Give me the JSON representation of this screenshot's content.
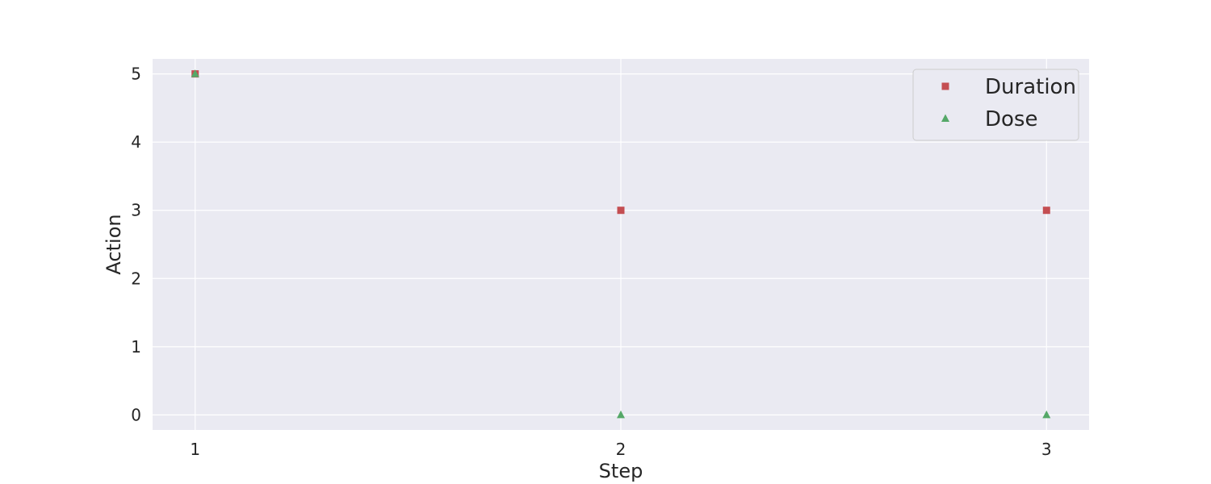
{
  "chart_data": {
    "type": "scatter",
    "title": "",
    "xlabel": "Step",
    "ylabel": "Action",
    "x": [
      1,
      2,
      3
    ],
    "xlim": [
      0.9,
      3.1
    ],
    "ylim": [
      -0.22,
      5.22
    ],
    "xticks": [
      "1",
      "2",
      "3"
    ],
    "yticks": [
      "0",
      "1",
      "2",
      "3",
      "4",
      "5"
    ],
    "grid": true,
    "legend_position": "top-right",
    "series": [
      {
        "name": "Duration",
        "marker": "square",
        "color": "#c44e52",
        "values": [
          5,
          3,
          3
        ]
      },
      {
        "name": "Dose",
        "marker": "triangle",
        "color": "#55a868",
        "values": [
          5,
          0,
          0
        ]
      }
    ],
    "colors": {
      "plot_background": "#eaeaf2",
      "grid": "#ffffff",
      "text": "#262626"
    }
  }
}
